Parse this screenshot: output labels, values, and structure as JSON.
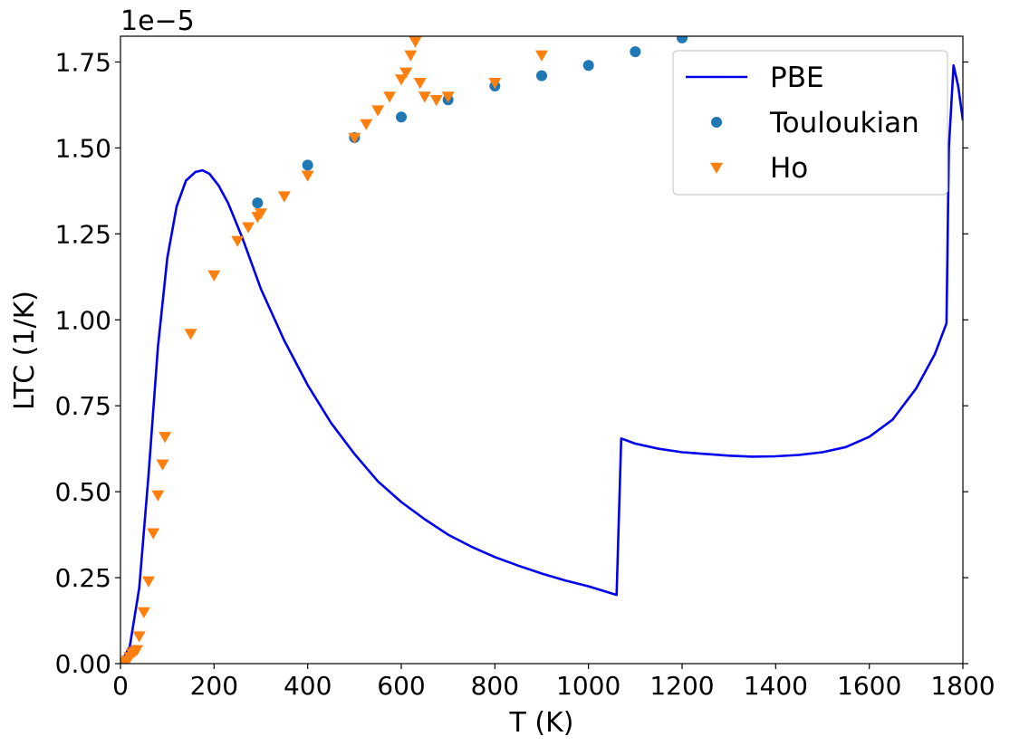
{
  "chart_data": {
    "type": "line",
    "xlabel": "T (K)",
    "ylabel": "LTC (1/K)",
    "y_offset_label": "1e−5",
    "xlim": [
      0,
      1800
    ],
    "ylim": [
      0,
      1.825
    ],
    "xticks": [
      0,
      200,
      400,
      600,
      800,
      1000,
      1200,
      1400,
      1600,
      1800
    ],
    "yticks": [
      0.0,
      0.25,
      0.5,
      0.75,
      1.0,
      1.25,
      1.5,
      1.75
    ],
    "ytick_labels": [
      "0.00",
      "0.25",
      "0.50",
      "0.75",
      "1.00",
      "1.25",
      "1.50",
      "1.75"
    ],
    "grid": false,
    "legend_position": "top-right",
    "series": [
      {
        "name": "PBE",
        "kind": "line",
        "color": "#0000ee",
        "x": [
          0,
          20,
          40,
          60,
          80,
          100,
          120,
          140,
          160,
          175,
          190,
          210,
          230,
          260,
          300,
          350,
          400,
          450,
          500,
          550,
          600,
          650,
          700,
          750,
          800,
          850,
          900,
          950,
          1000,
          1060,
          1070,
          1100,
          1150,
          1200,
          1300,
          1350,
          1400,
          1450,
          1500,
          1550,
          1600,
          1650,
          1700,
          1740,
          1765,
          1770,
          1780,
          1790,
          1800
        ],
        "y": [
          0.0,
          0.05,
          0.22,
          0.55,
          0.92,
          1.18,
          1.33,
          1.405,
          1.43,
          1.435,
          1.425,
          1.39,
          1.34,
          1.24,
          1.09,
          0.94,
          0.81,
          0.7,
          0.61,
          0.53,
          0.47,
          0.42,
          0.375,
          0.34,
          0.31,
          0.285,
          0.262,
          0.242,
          0.225,
          0.2,
          0.655,
          0.64,
          0.625,
          0.615,
          0.605,
          0.602,
          0.603,
          0.607,
          0.615,
          0.63,
          0.66,
          0.71,
          0.8,
          0.9,
          0.99,
          1.5,
          1.74,
          1.68,
          1.58
        ]
      },
      {
        "name": "Touloukian",
        "kind": "scatter",
        "marker": "circle",
        "color": "#1f77b4",
        "x": [
          293,
          400,
          500,
          600,
          700,
          800,
          900,
          1000,
          1100,
          1200
        ],
        "y": [
          1.34,
          1.45,
          1.53,
          1.59,
          1.64,
          1.68,
          1.71,
          1.74,
          1.78,
          1.82
        ]
      },
      {
        "name": "Ho",
        "kind": "scatter",
        "marker": "triangle-down",
        "color": "#ff7f0e",
        "x": [
          5,
          10,
          15,
          20,
          25,
          30,
          35,
          40,
          50,
          60,
          70,
          80,
          90,
          95,
          150,
          200,
          250,
          273,
          293,
          300,
          350,
          400,
          500,
          525,
          550,
          575,
          600,
          610,
          620,
          630,
          640,
          650,
          675,
          700,
          800,
          900
        ],
        "y": [
          0.0,
          0.005,
          0.01,
          0.02,
          0.03,
          0.035,
          0.04,
          0.08,
          0.15,
          0.24,
          0.38,
          0.49,
          0.58,
          0.66,
          0.96,
          1.13,
          1.23,
          1.27,
          1.3,
          1.31,
          1.36,
          1.42,
          1.53,
          1.57,
          1.61,
          1.65,
          1.7,
          1.72,
          1.77,
          1.81,
          1.69,
          1.65,
          1.64,
          1.65,
          1.69,
          1.77
        ]
      }
    ]
  }
}
